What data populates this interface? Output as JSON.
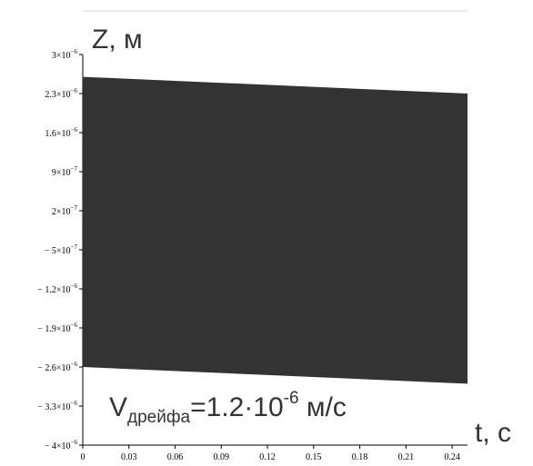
{
  "chart_data": {
    "type": "area",
    "ylabel": "Z, м",
    "xlabel": "t, с",
    "xlim": [
      0,
      0.25
    ],
    "ylim": [
      -4e-06,
      3e-06
    ],
    "grid": false,
    "x_ticks": [
      "0",
      "0.03",
      "0.06",
      "0.09",
      "0.12",
      "0.15",
      "0.18",
      "0.21",
      "0.24"
    ],
    "y_ticks": [
      {
        "mantissa": "3",
        "exp": "−6",
        "sign": ""
      },
      {
        "mantissa": "2.3",
        "exp": "−6",
        "sign": ""
      },
      {
        "mantissa": "1.6",
        "exp": "−6",
        "sign": ""
      },
      {
        "mantissa": "9",
        "exp": "−7",
        "sign": ""
      },
      {
        "mantissa": "2",
        "exp": "−7",
        "sign": ""
      },
      {
        "mantissa": "5",
        "exp": "−7",
        "sign": "− "
      },
      {
        "mantissa": "1.2",
        "exp": "−6",
        "sign": "− "
      },
      {
        "mantissa": "1.9",
        "exp": "−6",
        "sign": "− "
      },
      {
        "mantissa": "2.6",
        "exp": "−6",
        "sign": "− "
      },
      {
        "mantissa": "3.3",
        "exp": "−6",
        "sign": "− "
      },
      {
        "mantissa": "4",
        "exp": "−6",
        "sign": "− "
      }
    ],
    "y_tick_values": [
      3e-06,
      2.3e-06,
      1.6e-06,
      9e-07,
      2e-07,
      -5e-07,
      -1.2e-06,
      -1.9e-06,
      -2.6e-06,
      -3.3e-06,
      -4e-06
    ],
    "x_tick_values": [
      0,
      0.03,
      0.06,
      0.09,
      0.12,
      0.15,
      0.18,
      0.21,
      0.24
    ],
    "band": {
      "x": [
        0,
        0.25
      ],
      "upper": [
        2.6e-06,
        2.3e-06
      ],
      "lower": [
        -2.6e-06,
        -2.9e-06
      ],
      "color": "#333333"
    },
    "annotation": {
      "main": "V",
      "subscript": "дрейфа",
      "value": "=1.2·10",
      "exponent": "-6",
      "unit": " м/с"
    }
  }
}
